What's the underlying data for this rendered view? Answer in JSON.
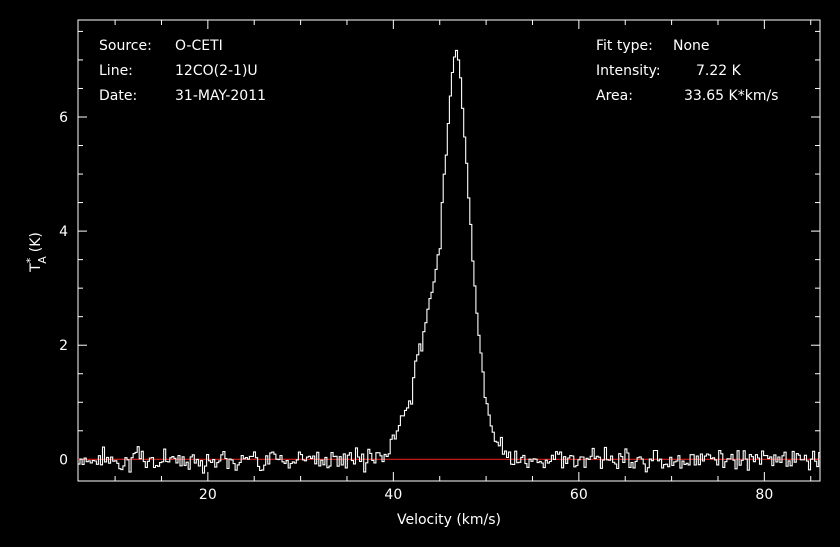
{
  "chart_data": {
    "type": "line",
    "title": "",
    "xlabel": "Velocity (km/s)",
    "ylabel": {
      "base": "T",
      "sup": "*",
      "sub": "A",
      "unit": "(K)"
    },
    "xlim": [
      6,
      86
    ],
    "ylim": [
      -0.38,
      7.7
    ],
    "x_ticks": [
      20,
      40,
      60,
      80
    ],
    "y_ticks": [
      0,
      2,
      4,
      6
    ],
    "grid": false,
    "baseline": {
      "y": 0,
      "color": "#d42020"
    },
    "line_color": "#ffffff",
    "noise": {
      "x_start": 6,
      "x_end": 86,
      "step": 0.22,
      "rms": 0.13,
      "seed": 7
    },
    "profile_points": [
      [
        38.0,
        0.0
      ],
      [
        39.0,
        0.06
      ],
      [
        40.0,
        0.3
      ],
      [
        41.0,
        0.72
      ],
      [
        42.0,
        1.25
      ],
      [
        43.0,
        2.05
      ],
      [
        44.0,
        2.8
      ],
      [
        44.5,
        3.1
      ],
      [
        45.0,
        3.8
      ],
      [
        45.5,
        4.8
      ],
      [
        46.0,
        6.1
      ],
      [
        46.5,
        7.05
      ],
      [
        46.8,
        7.22
      ],
      [
        47.2,
        6.85
      ],
      [
        47.8,
        5.4
      ],
      [
        48.4,
        4.0
      ],
      [
        49.0,
        2.6
      ],
      [
        49.6,
        1.6
      ],
      [
        50.2,
        0.85
      ],
      [
        51.0,
        0.4
      ],
      [
        52.0,
        0.15
      ],
      [
        53.0,
        0.0
      ]
    ],
    "annotations_left": [
      {
        "key": "Source:",
        "value": "O-CETI"
      },
      {
        "key": "Line:",
        "value": "12CO(2-1)U"
      },
      {
        "key": "Date:",
        "value": "31-MAY-2011"
      }
    ],
    "annotations_right": [
      {
        "key": "Fit type:",
        "value": "None"
      },
      {
        "key": "Intensity:",
        "value": "7.22 K"
      },
      {
        "key": "Area:",
        "value": "33.65 K*km/s"
      }
    ]
  }
}
